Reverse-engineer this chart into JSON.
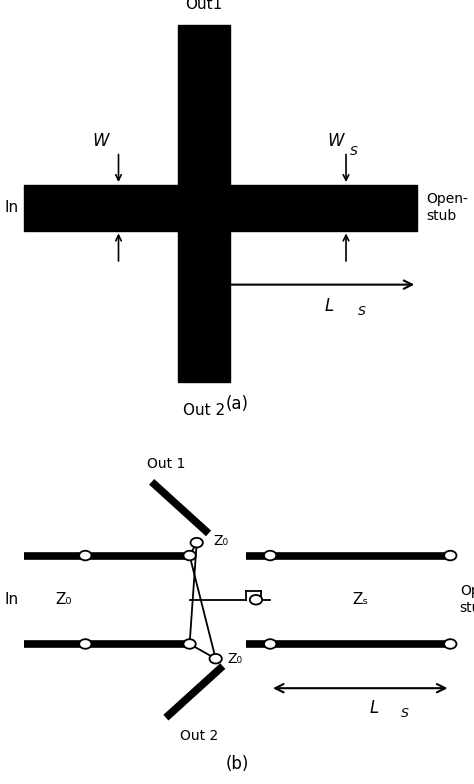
{
  "bg_color": "#ffffff",
  "fig_width": 4.74,
  "fig_height": 7.84,
  "panel_a": {
    "label": "(a)",
    "out1_label": "Out1",
    "out2_label": "Out 2",
    "in_label": "In",
    "openstub_label": "Open-\nstub",
    "W_label": "W",
    "Ws_label": "W",
    "Ws_sub": "S",
    "Ls_label": "L",
    "Ls_sub": "S"
  },
  "panel_b": {
    "label": "(b)",
    "out1_label": "Out 1",
    "out2_label": "Out 2",
    "in_label": "In",
    "openstub_label": "Open-\nstub",
    "Z0_label": "Z₀",
    "Zs_label": "Zₛ",
    "Ls_label": "L",
    "Ls_sub": "S"
  }
}
